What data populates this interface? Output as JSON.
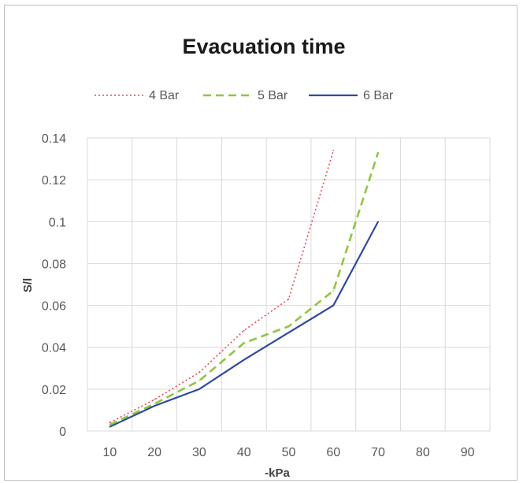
{
  "chart_data": {
    "type": "line",
    "title": "Evacuation time",
    "xlabel": "-kPa",
    "ylabel": "S/l",
    "categories": [
      10,
      20,
      30,
      40,
      50,
      60,
      70,
      80,
      90
    ],
    "y_ticks": [
      "0",
      "0.02",
      "0.04",
      "0.06",
      "0.08",
      "0.1",
      "0.12",
      "0.14"
    ],
    "ylim": [
      0,
      0.14
    ],
    "grid": true,
    "legend_position": "top",
    "series": [
      {
        "name": "4 Bar",
        "color": "#e8484f",
        "dash": "dotted",
        "x": [
          10,
          20,
          30,
          40,
          50,
          60
        ],
        "values": [
          0.004,
          0.015,
          0.028,
          0.048,
          0.063,
          0.134
        ]
      },
      {
        "name": "5 Bar",
        "color": "#8ec63f",
        "dash": "dashed",
        "x": [
          10,
          20,
          30,
          40,
          50,
          60,
          70
        ],
        "values": [
          0.003,
          0.013,
          0.024,
          0.042,
          0.05,
          0.067,
          0.133
        ]
      },
      {
        "name": "6 Bar",
        "color": "#2e4a9e",
        "dash": "solid",
        "x": [
          10,
          20,
          30,
          40,
          50,
          60,
          70
        ],
        "values": [
          0.002,
          0.012,
          0.02,
          0.034,
          0.047,
          0.06,
          0.1
        ]
      }
    ]
  }
}
